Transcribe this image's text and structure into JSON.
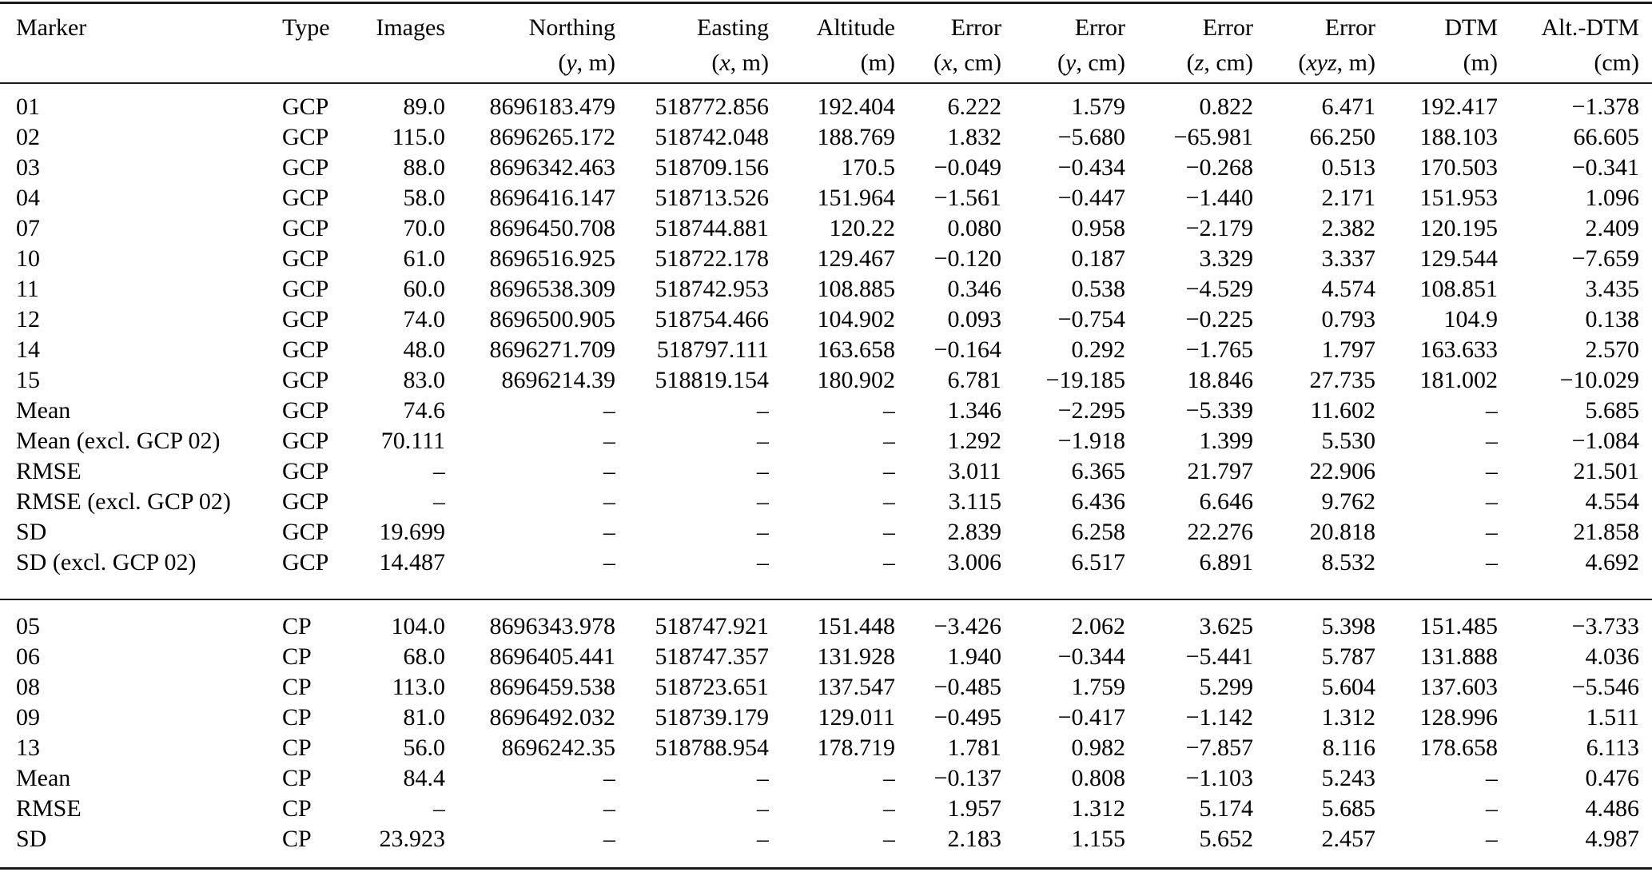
{
  "table": {
    "title": "Marker accuracy table (GCP and CP sections)",
    "columns": [
      {
        "label": "Marker",
        "unit_pre": "",
        "unit_var": "",
        "unit_post": ""
      },
      {
        "label": "Type",
        "unit_pre": "",
        "unit_var": "",
        "unit_post": ""
      },
      {
        "label": "Images",
        "unit_pre": "",
        "unit_var": "",
        "unit_post": ""
      },
      {
        "label": "Northing",
        "unit_pre": "(",
        "unit_var": "y",
        "unit_post": ", m)"
      },
      {
        "label": "Easting",
        "unit_pre": "(",
        "unit_var": "x",
        "unit_post": ", m)"
      },
      {
        "label": "Altitude",
        "unit_pre": "(",
        "unit_var": "",
        "unit_post": "m)"
      },
      {
        "label": "Error",
        "unit_pre": "(",
        "unit_var": "x",
        "unit_post": ", cm)"
      },
      {
        "label": "Error",
        "unit_pre": "(",
        "unit_var": "y",
        "unit_post": ", cm)"
      },
      {
        "label": "Error",
        "unit_pre": "(",
        "unit_var": "z",
        "unit_post": ", cm)"
      },
      {
        "label": "Error",
        "unit_pre": "(",
        "unit_var": "xyz",
        "unit_post": ", m)"
      },
      {
        "label": "DTM",
        "unit_pre": "(",
        "unit_var": "",
        "unit_post": "m)"
      },
      {
        "label": "Alt.-DTM",
        "unit_pre": "(",
        "unit_var": "",
        "unit_post": "cm)"
      }
    ],
    "sections": [
      {
        "name": "gcp",
        "rows": [
          [
            "01",
            "GCP",
            "89.0",
            "8696183.479",
            "518772.856",
            "192.404",
            "6.222",
            "1.579",
            "0.822",
            "6.471",
            "192.417",
            "−1.378"
          ],
          [
            "02",
            "GCP",
            "115.0",
            "8696265.172",
            "518742.048",
            "188.769",
            "1.832",
            "−5.680",
            "−65.981",
            "66.250",
            "188.103",
            "66.605"
          ],
          [
            "03",
            "GCP",
            "88.0",
            "8696342.463",
            "518709.156",
            "170.5",
            "−0.049",
            "−0.434",
            "−0.268",
            "0.513",
            "170.503",
            "−0.341"
          ],
          [
            "04",
            "GCP",
            "58.0",
            "8696416.147",
            "518713.526",
            "151.964",
            "−1.561",
            "−0.447",
            "−1.440",
            "2.171",
            "151.953",
            "1.096"
          ],
          [
            "07",
            "GCP",
            "70.0",
            "8696450.708",
            "518744.881",
            "120.22",
            "0.080",
            "0.958",
            "−2.179",
            "2.382",
            "120.195",
            "2.409"
          ],
          [
            "10",
            "GCP",
            "61.0",
            "8696516.925",
            "518722.178",
            "129.467",
            "−0.120",
            "0.187",
            "3.329",
            "3.337",
            "129.544",
            "−7.659"
          ],
          [
            "11",
            "GCP",
            "60.0",
            "8696538.309",
            "518742.953",
            "108.885",
            "0.346",
            "0.538",
            "−4.529",
            "4.574",
            "108.851",
            "3.435"
          ],
          [
            "12",
            "GCP",
            "74.0",
            "8696500.905",
            "518754.466",
            "104.902",
            "0.093",
            "−0.754",
            "−0.225",
            "0.793",
            "104.9",
            "0.138"
          ],
          [
            "14",
            "GCP",
            "48.0",
            "8696271.709",
            "518797.111",
            "163.658",
            "−0.164",
            "0.292",
            "−1.765",
            "1.797",
            "163.633",
            "2.570"
          ],
          [
            "15",
            "GCP",
            "83.0",
            "8696214.39",
            "518819.154",
            "180.902",
            "6.781",
            "−19.185",
            "18.846",
            "27.735",
            "181.002",
            "−10.029"
          ],
          [
            "Mean",
            "GCP",
            "74.6",
            "–",
            "–",
            "–",
            "1.346",
            "−2.295",
            "−5.339",
            "11.602",
            "–",
            "5.685"
          ],
          [
            "Mean (excl. GCP 02)",
            "GCP",
            "70.111",
            "–",
            "–",
            "–",
            "1.292",
            "−1.918",
            "1.399",
            "5.530",
            "–",
            "−1.084"
          ],
          [
            "RMSE",
            "GCP",
            "–",
            "–",
            "–",
            "–",
            "3.011",
            "6.365",
            "21.797",
            "22.906",
            "–",
            "21.501"
          ],
          [
            "RMSE (excl. GCP 02)",
            "GCP",
            "–",
            "–",
            "–",
            "–",
            "3.115",
            "6.436",
            "6.646",
            "9.762",
            "–",
            "4.554"
          ],
          [
            "SD",
            "GCP",
            "19.699",
            "–",
            "–",
            "–",
            "2.839",
            "6.258",
            "22.276",
            "20.818",
            "–",
            "21.858"
          ],
          [
            "SD (excl. GCP 02)",
            "GCP",
            "14.487",
            "–",
            "–",
            "–",
            "3.006",
            "6.517",
            "6.891",
            "8.532",
            "–",
            "4.692"
          ]
        ]
      },
      {
        "name": "cp",
        "rows": [
          [
            "05",
            "CP",
            "104.0",
            "8696343.978",
            "518747.921",
            "151.448",
            "−3.426",
            "2.062",
            "3.625",
            "5.398",
            "151.485",
            "−3.733"
          ],
          [
            "06",
            "CP",
            "68.0",
            "8696405.441",
            "518747.357",
            "131.928",
            "1.940",
            "−0.344",
            "−5.441",
            "5.787",
            "131.888",
            "4.036"
          ],
          [
            "08",
            "CP",
            "113.0",
            "8696459.538",
            "518723.651",
            "137.547",
            "−0.485",
            "1.759",
            "5.299",
            "5.604",
            "137.603",
            "−5.546"
          ],
          [
            "09",
            "CP",
            "81.0",
            "8696492.032",
            "518739.179",
            "129.011",
            "−0.495",
            "−0.417",
            "−1.142",
            "1.312",
            "128.996",
            "1.511"
          ],
          [
            "13",
            "CP",
            "56.0",
            "8696242.35",
            "518788.954",
            "178.719",
            "1.781",
            "0.982",
            "−7.857",
            "8.116",
            "178.658",
            "6.113"
          ],
          [
            "Mean",
            "CP",
            "84.4",
            "–",
            "–",
            "–",
            "−0.137",
            "0.808",
            "−1.103",
            "5.243",
            "–",
            "0.476"
          ],
          [
            "RMSE",
            "CP",
            "–",
            "–",
            "–",
            "–",
            "1.957",
            "1.312",
            "5.174",
            "5.685",
            "–",
            "4.486"
          ],
          [
            "SD",
            "CP",
            "23.923",
            "–",
            "–",
            "–",
            "2.183",
            "1.155",
            "5.652",
            "2.457",
            "–",
            "4.987"
          ]
        ]
      }
    ]
  }
}
